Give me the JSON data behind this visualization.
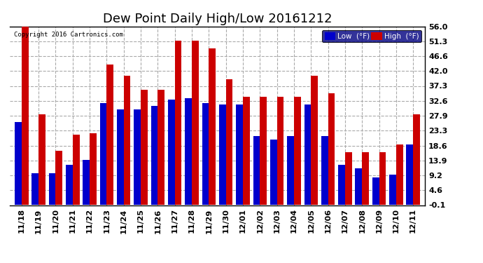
{
  "title": "Dew Point Daily High/Low 20161212",
  "copyright": "Copyright 2016 Cartronics.com",
  "legend_low": "Low  (°F)",
  "legend_high": "High  (°F)",
  "low_color": "#0000cc",
  "high_color": "#cc0000",
  "background_color": "#ffffff",
  "plot_bg_color": "#ffffff",
  "grid_color": "#aaaaaa",
  "yticks": [
    -0.1,
    4.6,
    9.2,
    13.9,
    18.6,
    23.3,
    27.9,
    32.6,
    37.3,
    42.0,
    46.6,
    51.3,
    56.0
  ],
  "dates": [
    "11/18",
    "11/19",
    "11/20",
    "11/21",
    "11/22",
    "11/23",
    "11/24",
    "11/25",
    "11/26",
    "11/27",
    "11/28",
    "11/29",
    "11/30",
    "12/01",
    "12/02",
    "12/03",
    "12/04",
    "12/05",
    "12/06",
    "12/07",
    "12/08",
    "12/09",
    "12/10",
    "12/11"
  ],
  "low_values": [
    26.0,
    10.0,
    10.0,
    12.5,
    14.0,
    32.0,
    30.0,
    30.0,
    31.0,
    33.0,
    33.5,
    32.0,
    31.5,
    31.5,
    21.5,
    20.5,
    21.5,
    31.5,
    21.5,
    12.5,
    11.5,
    8.5,
    9.5,
    19.0
  ],
  "high_values": [
    56.0,
    28.5,
    17.0,
    22.0,
    22.5,
    44.0,
    40.5,
    36.0,
    36.0,
    51.5,
    51.5,
    49.0,
    39.5,
    34.0,
    34.0,
    34.0,
    34.0,
    40.5,
    35.0,
    16.5,
    16.5,
    16.5,
    19.0,
    28.5
  ],
  "bar_width": 0.4,
  "ylim": [
    -0.1,
    56.0
  ],
  "title_fontsize": 13,
  "tick_fontsize": 8,
  "figsize": [
    6.9,
    3.75
  ],
  "dpi": 100
}
